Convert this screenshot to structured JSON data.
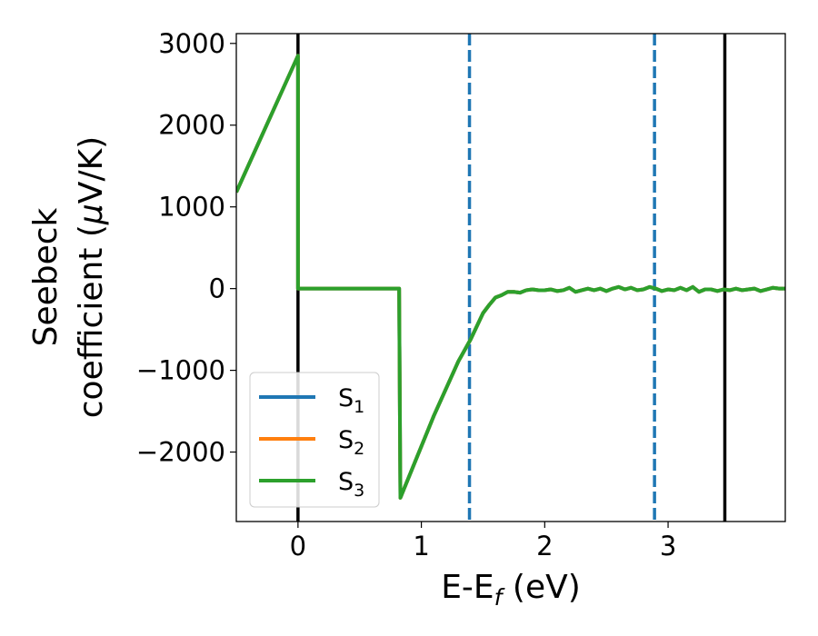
{
  "chart_data": {
    "type": "line",
    "xlabel": "E-E",
    "xlabel_sub": "f",
    "xlabel_unit": " (eV)",
    "ylabel_line1": "Seebeck",
    "ylabel_line2": "coefficient  (",
    "ylabel_mu": "μ",
    "ylabel_unit": "V/K)",
    "xlim": [
      -0.5,
      3.95
    ],
    "ylim": [
      -2850,
      3120
    ],
    "x_ticks": [
      0,
      1,
      2,
      3
    ],
    "x_tick_labels": [
      "0",
      "1",
      "2",
      "3"
    ],
    "y_ticks": [
      3000,
      2000,
      1000,
      0,
      -1000,
      -2000
    ],
    "y_tick_labels": [
      "3000",
      "2000",
      "1000",
      "0",
      "−1000",
      "−2000"
    ],
    "grid": false,
    "legend_position": "bottom-left",
    "series": [
      {
        "name": "S",
        "sub": "1",
        "color": "#1f77b4",
        "x": [
          -0.5,
          0.0,
          0.0,
          0.82,
          0.82,
          0.83,
          1.1,
          1.3,
          1.4,
          1.5,
          1.55,
          1.6,
          1.65,
          1.7,
          1.75,
          1.8,
          1.85,
          1.9,
          1.95,
          2.0,
          2.05,
          2.1,
          2.15,
          2.2,
          2.25,
          2.3,
          2.35,
          2.4,
          2.45,
          2.5,
          2.55,
          2.6,
          2.65,
          2.7,
          2.75,
          2.8,
          2.85,
          2.9,
          2.95,
          3.0,
          3.05,
          3.1,
          3.15,
          3.2,
          3.25,
          3.3,
          3.35,
          3.4,
          3.45,
          3.5,
          3.55,
          3.6,
          3.65,
          3.7,
          3.75,
          3.8,
          3.85,
          3.9,
          3.95
        ],
        "y": [
          1180,
          2850,
          0,
          0,
          0,
          -2560,
          -1560,
          -890,
          -620,
          -300,
          -200,
          -110,
          -80,
          -40,
          -40,
          -50,
          -20,
          -10,
          -20,
          -20,
          -10,
          -30,
          -20,
          10,
          -40,
          -20,
          0,
          -20,
          0,
          -30,
          0,
          20,
          -10,
          10,
          -20,
          -10,
          20,
          0,
          -30,
          -10,
          -20,
          10,
          -20,
          20,
          -40,
          -10,
          -10,
          -30,
          -10,
          -20,
          0,
          -20,
          -10,
          0,
          -30,
          -10,
          10,
          0,
          0
        ]
      },
      {
        "name": "S",
        "sub": "2",
        "color": "#ff7f0e",
        "x": [
          -0.5,
          0.0,
          0.0,
          0.82,
          0.82,
          0.83,
          1.1,
          1.3,
          1.4,
          1.5,
          1.55,
          1.6,
          1.65,
          1.7,
          1.75,
          1.8,
          1.85,
          1.9,
          1.95,
          2.0,
          2.05,
          2.1,
          2.15,
          2.2,
          2.25,
          2.3,
          2.35,
          2.4,
          2.45,
          2.5,
          2.55,
          2.6,
          2.65,
          2.7,
          2.75,
          2.8,
          2.85,
          2.9,
          2.95,
          3.0,
          3.05,
          3.1,
          3.15,
          3.2,
          3.25,
          3.3,
          3.35,
          3.4,
          3.45,
          3.5,
          3.55,
          3.6,
          3.65,
          3.7,
          3.75,
          3.8,
          3.85,
          3.9,
          3.95
        ],
        "y": [
          1180,
          2850,
          0,
          0,
          0,
          -2560,
          -1560,
          -890,
          -620,
          -300,
          -200,
          -110,
          -80,
          -40,
          -40,
          -50,
          -20,
          -10,
          -20,
          -20,
          -10,
          -30,
          -20,
          10,
          -40,
          -20,
          0,
          -20,
          0,
          -30,
          0,
          20,
          -10,
          10,
          -20,
          -10,
          20,
          0,
          -30,
          -10,
          -20,
          10,
          -20,
          20,
          -40,
          -10,
          -10,
          -30,
          -10,
          -20,
          0,
          -20,
          -10,
          0,
          -30,
          -10,
          10,
          0,
          0
        ]
      },
      {
        "name": "S",
        "sub": "3",
        "color": "#2ca02c",
        "x": [
          -0.5,
          0.0,
          0.0,
          0.82,
          0.82,
          0.83,
          1.1,
          1.3,
          1.4,
          1.5,
          1.55,
          1.6,
          1.65,
          1.7,
          1.75,
          1.8,
          1.85,
          1.9,
          1.95,
          2.0,
          2.05,
          2.1,
          2.15,
          2.2,
          2.25,
          2.3,
          2.35,
          2.4,
          2.45,
          2.5,
          2.55,
          2.6,
          2.65,
          2.7,
          2.75,
          2.8,
          2.85,
          2.9,
          2.95,
          3.0,
          3.05,
          3.1,
          3.15,
          3.2,
          3.25,
          3.3,
          3.35,
          3.4,
          3.45,
          3.5,
          3.55,
          3.6,
          3.65,
          3.7,
          3.75,
          3.8,
          3.85,
          3.9,
          3.95
        ],
        "y": [
          1180,
          2850,
          0,
          0,
          0,
          -2560,
          -1560,
          -890,
          -620,
          -300,
          -200,
          -110,
          -80,
          -40,
          -40,
          -50,
          -20,
          -10,
          -20,
          -20,
          -10,
          -30,
          -20,
          10,
          -40,
          -20,
          0,
          -20,
          0,
          -30,
          0,
          20,
          -10,
          10,
          -20,
          -10,
          20,
          0,
          -30,
          -10,
          -20,
          10,
          -20,
          20,
          -40,
          -10,
          -10,
          -30,
          -10,
          -20,
          0,
          -20,
          -10,
          0,
          -30,
          -10,
          10,
          0,
          0
        ]
      }
    ],
    "vlines": [
      {
        "x": 0.0,
        "color": "#000000",
        "style": "solid"
      },
      {
        "x": 3.46,
        "color": "#000000",
        "style": "solid"
      },
      {
        "x": 1.39,
        "color": "#1f77b4",
        "style": "dashed"
      },
      {
        "x": 2.89,
        "color": "#1f77b4",
        "style": "dashed"
      }
    ]
  }
}
